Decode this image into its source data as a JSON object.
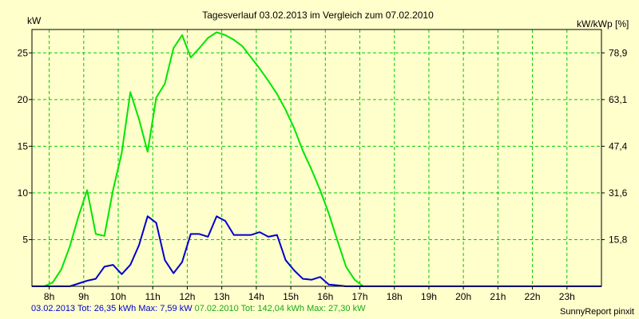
{
  "chart_data": {
    "type": "line",
    "title": "Tagesverlauf 03.02.2013 im Vergleich zum 07.02.2010",
    "y_left_label": "kW",
    "y_right_label": "kW/kWp [%]",
    "x_ticks": [
      "8h",
      "9h",
      "10h",
      "11h",
      "12h",
      "13h",
      "14h",
      "15h",
      "16h",
      "17h",
      "18h",
      "19h",
      "20h",
      "21h",
      "22h",
      "23h"
    ],
    "y_left_ticks": [
      "5",
      "10",
      "15",
      "20",
      "25"
    ],
    "y_right_ticks": [
      "15,8",
      "31,6",
      "47,4",
      "63,1",
      "78,9"
    ],
    "x_range": [
      7.5,
      24.0
    ],
    "y_range": [
      0,
      27.5
    ],
    "grid": true,
    "series": [
      {
        "name": "07.02.2010",
        "color": "#00e600",
        "points": [
          [
            7.5,
            0
          ],
          [
            7.85,
            0
          ],
          [
            8.1,
            0.4
          ],
          [
            8.35,
            1.8
          ],
          [
            8.6,
            4.3
          ],
          [
            8.85,
            7.5
          ],
          [
            9.1,
            10.3
          ],
          [
            9.35,
            5.6
          ],
          [
            9.6,
            5.4
          ],
          [
            9.85,
            10.3
          ],
          [
            10.1,
            14.3
          ],
          [
            10.35,
            20.8
          ],
          [
            10.6,
            17.9
          ],
          [
            10.85,
            14.4
          ],
          [
            11.1,
            20.2
          ],
          [
            11.35,
            21.7
          ],
          [
            11.6,
            25.5
          ],
          [
            11.85,
            26.9
          ],
          [
            12.1,
            24.5
          ],
          [
            12.35,
            25.5
          ],
          [
            12.6,
            26.6
          ],
          [
            12.85,
            27.2
          ],
          [
            13.1,
            26.9
          ],
          [
            13.35,
            26.4
          ],
          [
            13.6,
            25.7
          ],
          [
            13.85,
            24.5
          ],
          [
            14.1,
            23.3
          ],
          [
            14.35,
            22.0
          ],
          [
            14.6,
            20.6
          ],
          [
            14.85,
            18.9
          ],
          [
            15.1,
            16.9
          ],
          [
            15.35,
            14.5
          ],
          [
            15.6,
            12.5
          ],
          [
            15.85,
            10.3
          ],
          [
            16.1,
            7.8
          ],
          [
            16.35,
            4.9
          ],
          [
            16.6,
            2.1
          ],
          [
            16.85,
            0.7
          ],
          [
            17.1,
            0
          ],
          [
            24.0,
            0
          ]
        ]
      },
      {
        "name": "03.02.2013",
        "color": "#0000cc",
        "points": [
          [
            7.5,
            0
          ],
          [
            8.6,
            0
          ],
          [
            8.85,
            0.3
          ],
          [
            9.1,
            0.6
          ],
          [
            9.35,
            0.8
          ],
          [
            9.6,
            2.1
          ],
          [
            9.85,
            2.3
          ],
          [
            10.1,
            1.3
          ],
          [
            10.35,
            2.3
          ],
          [
            10.6,
            4.4
          ],
          [
            10.85,
            7.5
          ],
          [
            11.1,
            6.8
          ],
          [
            11.35,
            2.8
          ],
          [
            11.6,
            1.4
          ],
          [
            11.85,
            2.6
          ],
          [
            12.1,
            5.6
          ],
          [
            12.35,
            5.6
          ],
          [
            12.6,
            5.3
          ],
          [
            12.85,
            7.5
          ],
          [
            13.1,
            7.0
          ],
          [
            13.35,
            5.5
          ],
          [
            13.6,
            5.5
          ],
          [
            13.85,
            5.5
          ],
          [
            14.1,
            5.8
          ],
          [
            14.35,
            5.3
          ],
          [
            14.6,
            5.5
          ],
          [
            14.85,
            2.8
          ],
          [
            15.1,
            1.7
          ],
          [
            15.35,
            0.8
          ],
          [
            15.6,
            0.7
          ],
          [
            15.85,
            1.0
          ],
          [
            16.1,
            0.2
          ],
          [
            16.35,
            0.1
          ],
          [
            16.6,
            0
          ],
          [
            24.0,
            0
          ]
        ]
      }
    ]
  },
  "footer": {
    "series2013_summary": "03.02.2013 Tot: 26,35 kWh Max: 7,59 kW",
    "series2010_summary": "07.02.2010 Tot: 142,04 kWh Max: 27,30 kW",
    "credit": "SunnyReport pinxit"
  }
}
